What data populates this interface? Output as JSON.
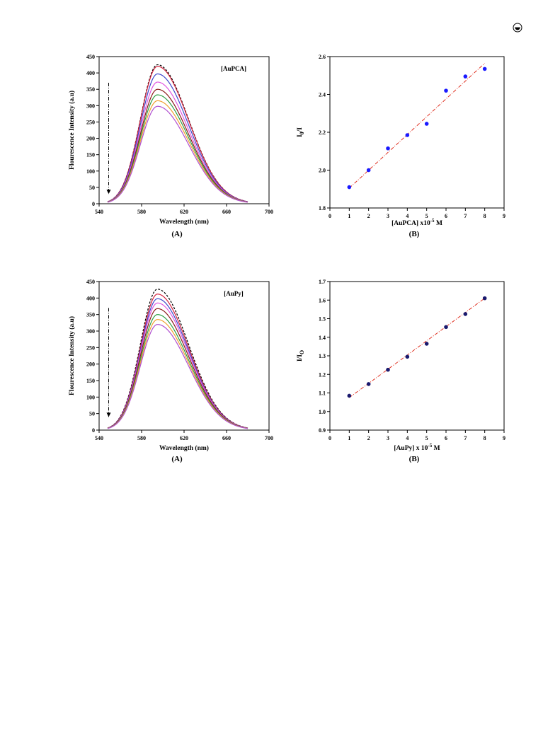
{
  "chart_data": [
    {
      "type": "line",
      "ylabel": "Flourescence Intensity (a.u)",
      "xlabel": "Wavelength (nm)",
      "caption": "(A)",
      "annotation": "[AuPCA]",
      "xlim": [
        540,
        700
      ],
      "ylim": [
        0,
        450
      ],
      "xticks": [
        540,
        580,
        620,
        660,
        700
      ],
      "yticks": [
        0,
        50,
        100,
        150,
        200,
        250,
        300,
        350,
        400,
        450
      ],
      "x_start": 548,
      "x_peak": 595,
      "x_end": 680,
      "peaks": [
        425,
        420,
        397,
        372,
        350,
        333,
        315,
        298
      ],
      "series_colors": [
        "#000000",
        "#d4213d",
        "#3f48cc",
        "#e056e0",
        "#8b1a1a",
        "#2f9e44",
        "#f0a030",
        "#b050d0"
      ],
      "dashed_series_index": 0,
      "arrow": {
        "x": 549,
        "y_from": 370,
        "y_to": 30
      }
    },
    {
      "type": "scatter",
      "ylabel": "I0/I",
      "ylabel_main": "I",
      "ylabel_sub": "0",
      "ylabel_tail": "/I",
      "xlabel_prefix": "[AuPCA] x10",
      "xlabel_exp": "-5",
      "xlabel_suffix": " M",
      "caption": "(B)",
      "xlim": [
        0,
        9
      ],
      "ylim": [
        1.8,
        2.6
      ],
      "xticks": [
        0,
        1,
        2,
        3,
        4,
        5,
        6,
        7,
        8,
        9
      ],
      "yticks": [
        "1.8",
        "2.0",
        "2.2",
        "2.4",
        "2.6"
      ],
      "x": [
        1,
        2,
        3,
        4,
        5,
        6,
        7,
        8
      ],
      "y": [
        1.91,
        2.0,
        2.115,
        2.185,
        2.245,
        2.42,
        2.495,
        2.535
      ],
      "fit": {
        "x": [
          1,
          8
        ],
        "y": [
          1.905,
          2.565
        ]
      },
      "marker_color": "#1a1aff",
      "fit_color": "#e03020"
    },
    {
      "type": "line",
      "ylabel": "Flourescence Intensity (a.u)",
      "xlabel": "Wavelength (nm)",
      "caption": "(A)",
      "annotation": "[AuPy]",
      "xlim": [
        540,
        700
      ],
      "ylim": [
        0,
        450
      ],
      "xticks": [
        540,
        580,
        620,
        660,
        700
      ],
      "yticks": [
        0,
        50,
        100,
        150,
        200,
        250,
        300,
        350,
        400,
        450
      ],
      "x_start": 548,
      "x_peak": 595,
      "x_end": 680,
      "peaks": [
        427,
        412,
        398,
        385,
        368,
        350,
        335,
        320
      ],
      "series_colors": [
        "#000000",
        "#d4213d",
        "#3f48cc",
        "#e056e0",
        "#8b1a1a",
        "#2f9e44",
        "#f0a030",
        "#b050d0"
      ],
      "dashed_series_index": 0,
      "arrow": {
        "x": 549,
        "y_from": 370,
        "y_to": 40
      }
    },
    {
      "type": "scatter",
      "ylabel": "I/I0",
      "ylabel_main": "I/I",
      "ylabel_sub": "O",
      "ylabel_tail": "",
      "xlabel_prefix": "[AuPy] x 10",
      "xlabel_exp": "-5",
      "xlabel_suffix": " M",
      "caption": "(B)",
      "xlim": [
        0,
        9
      ],
      "ylim": [
        0.9,
        1.7
      ],
      "xticks": [
        0,
        1,
        2,
        3,
        4,
        5,
        6,
        7,
        8,
        9
      ],
      "yticks": [
        "0.9",
        "1.0",
        "1.1",
        "1.2",
        "1.3",
        "1.4",
        "1.5",
        "1.6",
        "1.7"
      ],
      "x": [
        1,
        2,
        3,
        4,
        5,
        6,
        7,
        8
      ],
      "y": [
        1.085,
        1.148,
        1.225,
        1.295,
        1.365,
        1.455,
        1.525,
        1.61
      ],
      "fit": {
        "x": [
          1,
          8
        ],
        "y": [
          1.075,
          1.61
        ]
      },
      "marker_color": "#1a1a6e",
      "fit_color": "#e03020"
    }
  ],
  "logo": {
    "name": "publisher-logo"
  }
}
